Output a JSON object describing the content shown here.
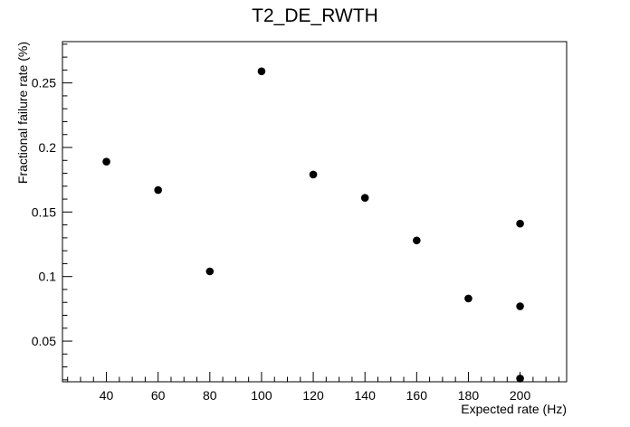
{
  "chart_data": {
    "type": "scatter",
    "title": "T2_DE_RWTH",
    "xlabel": "Expected rate (Hz)",
    "ylabel": "Fractional failure rate (%)",
    "xlim": [
      23,
      218
    ],
    "ylim": [
      0.0185,
      0.282
    ],
    "x_ticks": [
      40,
      60,
      80,
      100,
      120,
      140,
      160,
      180,
      200
    ],
    "y_ticks": [
      0.05,
      0.1,
      0.15,
      0.2,
      0.25
    ],
    "y_tick_labels": [
      "0.05",
      "0.1",
      "0.15",
      "0.2",
      "0.25"
    ],
    "grid": false,
    "series": [
      {
        "color": "#000000",
        "points": [
          {
            "x": 40,
            "y": 0.189
          },
          {
            "x": 60,
            "y": 0.167
          },
          {
            "x": 80,
            "y": 0.104
          },
          {
            "x": 100,
            "y": 0.259
          },
          {
            "x": 120,
            "y": 0.179
          },
          {
            "x": 140,
            "y": 0.161
          },
          {
            "x": 160,
            "y": 0.128
          },
          {
            "x": 180,
            "y": 0.083
          },
          {
            "x": 200,
            "y": 0.141
          },
          {
            "x": 200,
            "y": 0.077
          },
          {
            "x": 200,
            "y": 0.021
          }
        ]
      }
    ]
  }
}
